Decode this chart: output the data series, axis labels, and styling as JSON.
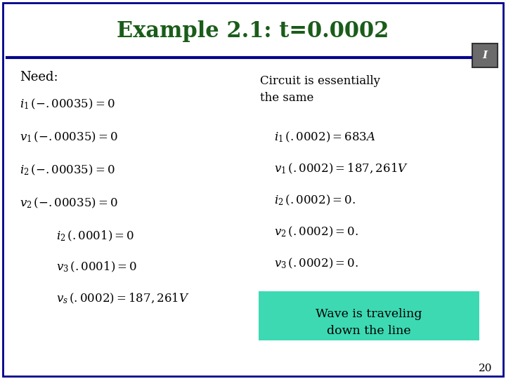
{
  "title": "Example 2.1: t=0.0002",
  "title_color": "#1a5c1a",
  "title_fontsize": 22,
  "bg_color": "#FFFFFF",
  "slide_border_color": "#00008B",
  "header_line_color": "#00008B",
  "need_label": "Need:",
  "left_equations": [
    "$i_1\\,(-.00035)= 0$",
    "$v_1\\,(-.00035)= 0$",
    "$i_2\\,(-.00035)= 0$",
    "$v_2\\,(-.00035)= 0$",
    "$i_2\\,(.0001)= 0$",
    "$v_3\\,(.0001)= 0$",
    "$v_s\\,(.0002)= 187,261V$"
  ],
  "left_indent": [
    false,
    false,
    false,
    false,
    true,
    true,
    true
  ],
  "right_header": "Circuit is essentially\nthe same",
  "right_equations": [
    "$i_1\\,(.0002)= 683A$",
    "$v_1\\,(.0002)= 187,261V$",
    "$i_2\\,(.0002)= 0.$",
    "$v_2\\,(.0002)= 0.$",
    "$v_3\\,(.0002)= 0.$"
  ],
  "wave_text": "Wave is traveling\ndown the line",
  "wave_bg": "#3DD9B3",
  "page_number": "20",
  "font_color": "#000000",
  "icon_bg": "#6B6B6B",
  "icon_border": "#333333"
}
